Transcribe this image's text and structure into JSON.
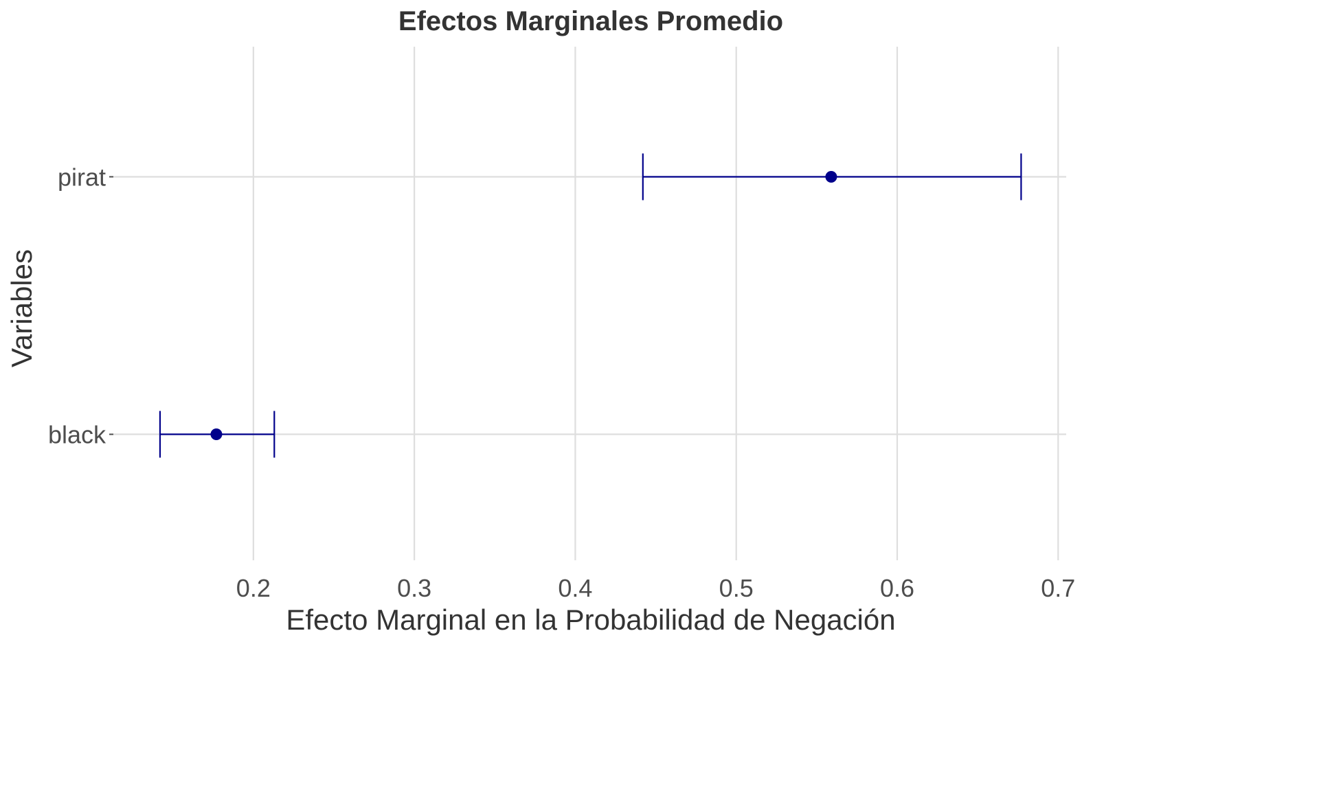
{
  "chart_data": {
    "type": "errorbar",
    "title": "Efectos Marginales Promedio",
    "xlabel": "Efecto Marginal en la Probabilidad de Negación",
    "ylabel": "Variables",
    "categories": [
      "black",
      "pirat"
    ],
    "points": [
      {
        "label": "black",
        "estimate": 0.177,
        "lower": 0.142,
        "upper": 0.213
      },
      {
        "label": "pirat",
        "estimate": 0.559,
        "lower": 0.442,
        "upper": 0.677
      }
    ],
    "xlim": [
      0.113,
      0.705
    ],
    "xticks": [
      0.2,
      0.3,
      0.4,
      0.5,
      0.6,
      0.7
    ],
    "xtick_labels": [
      "0.2",
      "0.3",
      "0.4",
      "0.5",
      "0.6",
      "0.7"
    ],
    "grid": true,
    "color": "#00008b"
  }
}
